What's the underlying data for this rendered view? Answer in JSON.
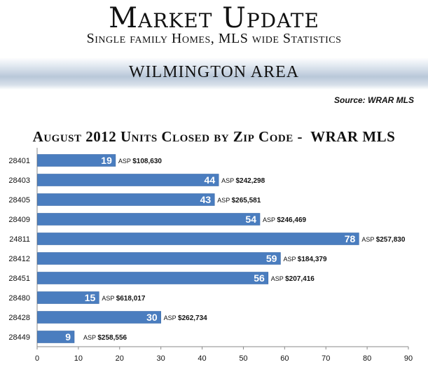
{
  "header": {
    "title": "Market Update",
    "subtitle": "Single family Homes, MLS wide Statistics",
    "area": "WILMINGTON AREA",
    "source": "Source: WRAR MLS"
  },
  "colors": {
    "bar": "#4a7dbf",
    "bar_edge": "#3b6aa8",
    "axis": "#8a8a8a"
  },
  "chart_data": {
    "type": "bar",
    "orientation": "horizontal",
    "title": "August 2012 Units Closed by Zip Code -  WRAR MLS",
    "categories": [
      "28401",
      "28403",
      "28405",
      "28409",
      "24811",
      "28412",
      "28451",
      "28480",
      "28428",
      "28449"
    ],
    "values": [
      19,
      44,
      43,
      54,
      78,
      59,
      56,
      15,
      30,
      9
    ],
    "value_labels": [
      "19",
      "44",
      "43",
      "54",
      "78",
      "59",
      "56",
      "15",
      "30",
      "9"
    ],
    "annotation_prefix": "ASP",
    "annotations": [
      "$108,630",
      "$242,298",
      "$265,581",
      "$246,469",
      "$257,830",
      "$184,379",
      "$207,416",
      "$618,017",
      "$262,734",
      "$258,556"
    ],
    "xlim": [
      0,
      90
    ],
    "xticks": [
      "0",
      "10",
      "20",
      "30",
      "40",
      "50",
      "60",
      "70",
      "80",
      "90"
    ],
    "grid": false,
    "legend": "none"
  }
}
